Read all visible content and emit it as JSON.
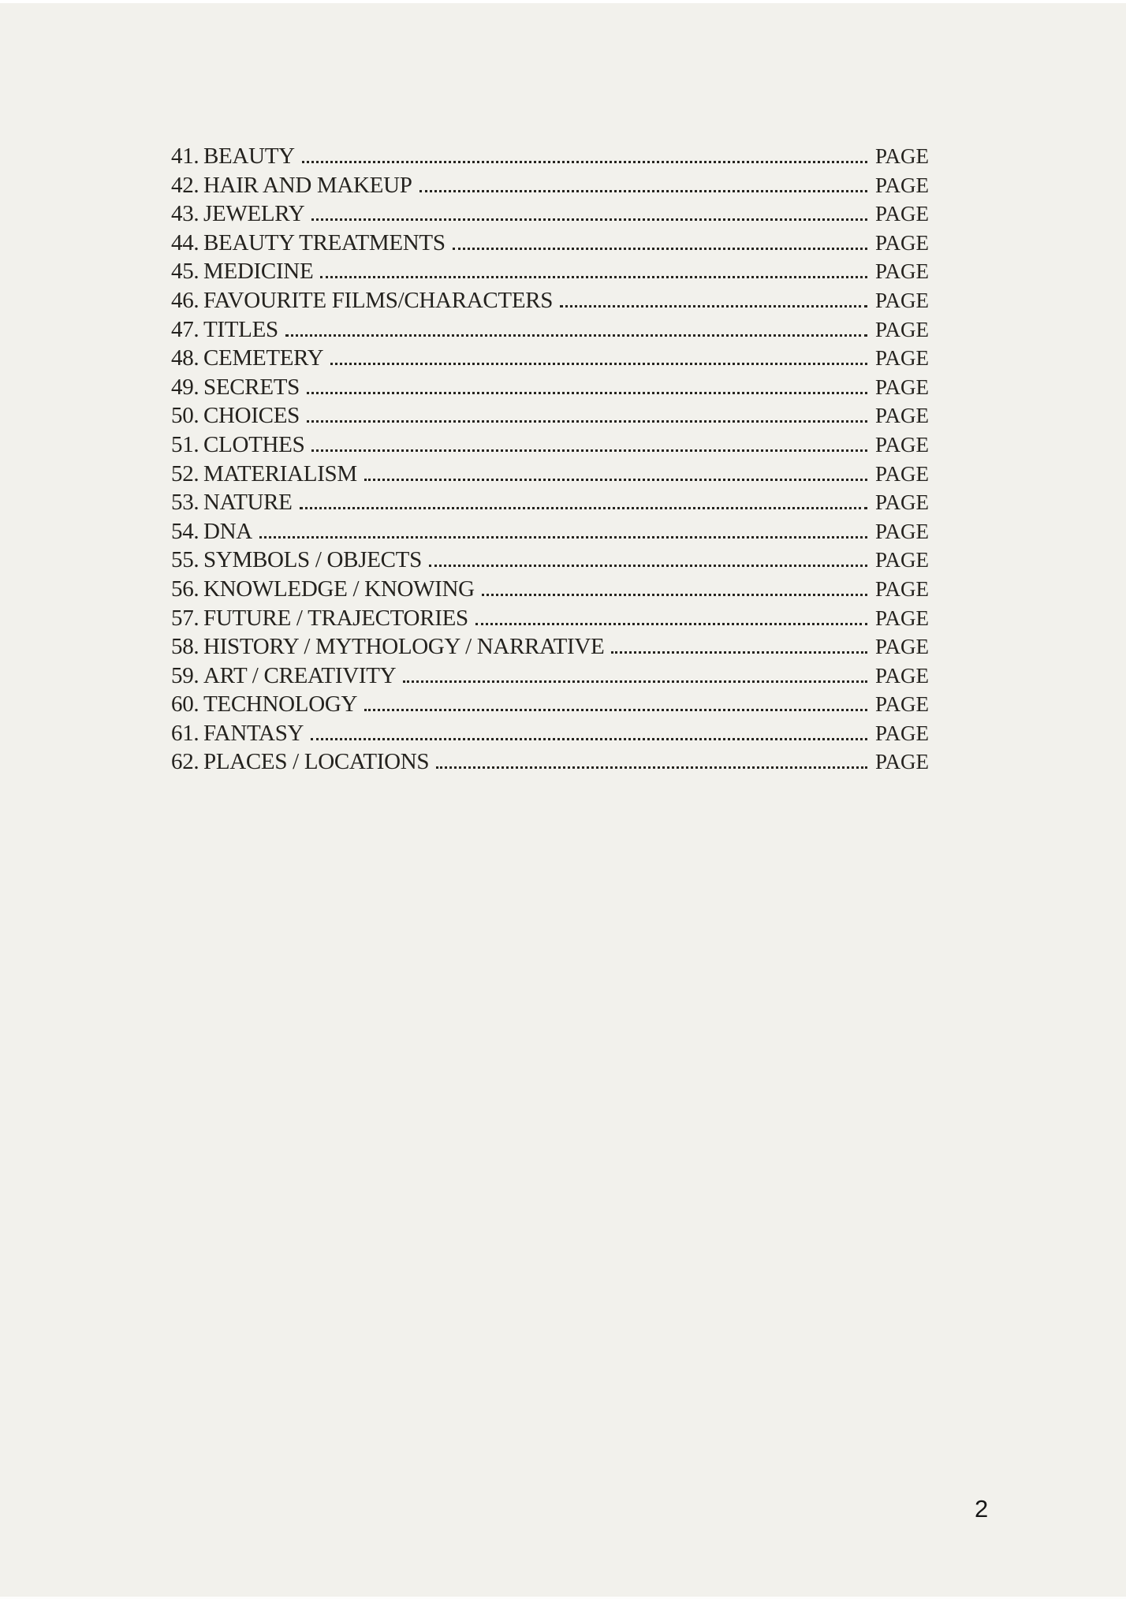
{
  "colors": {
    "page_background": "#f2f1ec",
    "text": "#24221e"
  },
  "toc": {
    "items": [
      {
        "num": "41.",
        "title": "BEAUTY",
        "page_label": "PAGE"
      },
      {
        "num": "42.",
        "title": "HAIR AND MAKEUP",
        "page_label": "PAGE"
      },
      {
        "num": "43.",
        "title": "JEWELRY",
        "page_label": "PAGE"
      },
      {
        "num": "44.",
        "title": "BEAUTY TREATMENTS",
        "page_label": "PAGE"
      },
      {
        "num": "45.",
        "title": "MEDICINE",
        "page_label": "PAGE"
      },
      {
        "num": "46.",
        "title": "FAVOURITE FILMS/CHARACTERS",
        "page_label": "PAGE"
      },
      {
        "num": "47.",
        "title": "TITLES",
        "page_label": "PAGE"
      },
      {
        "num": "48.",
        "title": "CEMETERY",
        "page_label": "PAGE"
      },
      {
        "num": "49.",
        "title": "SECRETS",
        "page_label": "PAGE"
      },
      {
        "num": "50.",
        "title": "CHOICES",
        "page_label": "PAGE"
      },
      {
        "num": "51.",
        "title": "CLOTHES",
        "page_label": "PAGE"
      },
      {
        "num": "52.",
        "title": "MATERIALISM",
        "page_label": "PAGE"
      },
      {
        "num": "53.",
        "title": "NATURE",
        "page_label": "PAGE"
      },
      {
        "num": "54.",
        "title": "DNA",
        "page_label": "PAGE"
      },
      {
        "num": "55.",
        "title": "SYMBOLS / OBJECTS",
        "page_label": "PAGE"
      },
      {
        "num": "56.",
        "title": "KNOWLEDGE / KNOWING",
        "page_label": "PAGE"
      },
      {
        "num": "57.",
        "title": "FUTURE / TRAJECTORIES",
        "page_label": "PAGE"
      },
      {
        "num": "58.",
        "title": "HISTORY / MYTHOLOGY / NARRATIVE",
        "page_label": "PAGE"
      },
      {
        "num": "59.",
        "title": "ART / CREATIVITY",
        "page_label": "PAGE"
      },
      {
        "num": "60.",
        "title": "TECHNOLOGY",
        "page_label": "PAGE"
      },
      {
        "num": "61.",
        "title": "FANTASY",
        "page_label": "PAGE"
      },
      {
        "num": "62.",
        "title": "PLACES / LOCATIONS",
        "page_label": "PAGE"
      }
    ]
  },
  "footer": {
    "page_number": "2"
  }
}
